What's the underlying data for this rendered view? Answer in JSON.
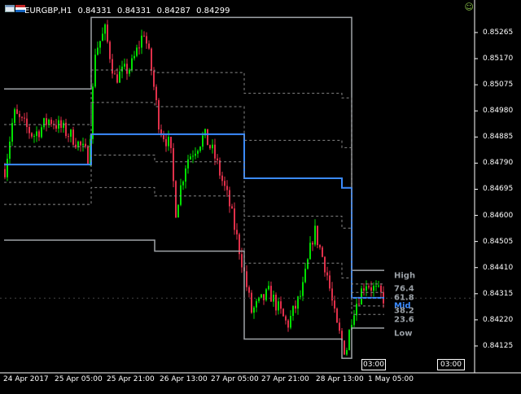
{
  "header": {
    "symbol": "EURGBP,H1",
    "ohlc": [
      "0.84331",
      "0.84331",
      "0.84287",
      "0.84299"
    ]
  },
  "price_axis": [
    "0.85265",
    "0.85170",
    "0.85075",
    "0.84980",
    "0.84885",
    "0.84790",
    "0.84695",
    "0.84600",
    "0.84505",
    "0.84410",
    "0.84315",
    "0.84220",
    "0.84125"
  ],
  "time_axis": [
    "24 Apr 2017",
    "25 Apr 05:00",
    "25 Apr 21:00",
    "26 Apr 13:00",
    "27 Apr 05:00",
    "27 Apr 21:00",
    "28 Apr 13:00",
    "1 May 05:00"
  ],
  "fib_levels": [
    {
      "label": "High",
      "color": "#9aa0a6"
    },
    {
      "label": "76.4",
      "color": "#9aa0a6"
    },
    {
      "label": "61.8",
      "color": "#9aa0a6"
    },
    {
      "label": "Mid",
      "color": "#3b8bff"
    },
    {
      "label": "38.2",
      "color": "#9aa0a6"
    },
    {
      "label": "23.6",
      "color": "#9aa0a6"
    },
    {
      "label": "Low",
      "color": "#9aa0a6"
    }
  ],
  "time_boxes": [
    "03:00",
    "03:00"
  ],
  "colors": {
    "bull": "#00e000",
    "bear": "#e0304a",
    "channel": "#a0a4a8",
    "mid": "#3b8bff",
    "dash": "#888888"
  },
  "chart_data": {
    "type": "candlestick",
    "symbol": "EURGBP",
    "timeframe": "H1",
    "ylim": [
      0.84045,
      0.8533
    ],
    "last_price": 0.84299,
    "channel_steps": [
      {
        "high": 0.8506,
        "low": 0.8451,
        "mid": 0.84785
      },
      {
        "high": 0.8532,
        "low": 0.8451,
        "mid": 0.84895
      },
      {
        "high": 0.8532,
        "low": 0.8447,
        "mid": 0.84895
      },
      {
        "high": 0.8532,
        "low": 0.8415,
        "mid": 0.84735
      },
      {
        "high": 0.8532,
        "low": 0.8408,
        "mid": 0.847
      },
      {
        "high": 0.844,
        "low": 0.8419,
        "mid": 0.843
      }
    ]
  }
}
